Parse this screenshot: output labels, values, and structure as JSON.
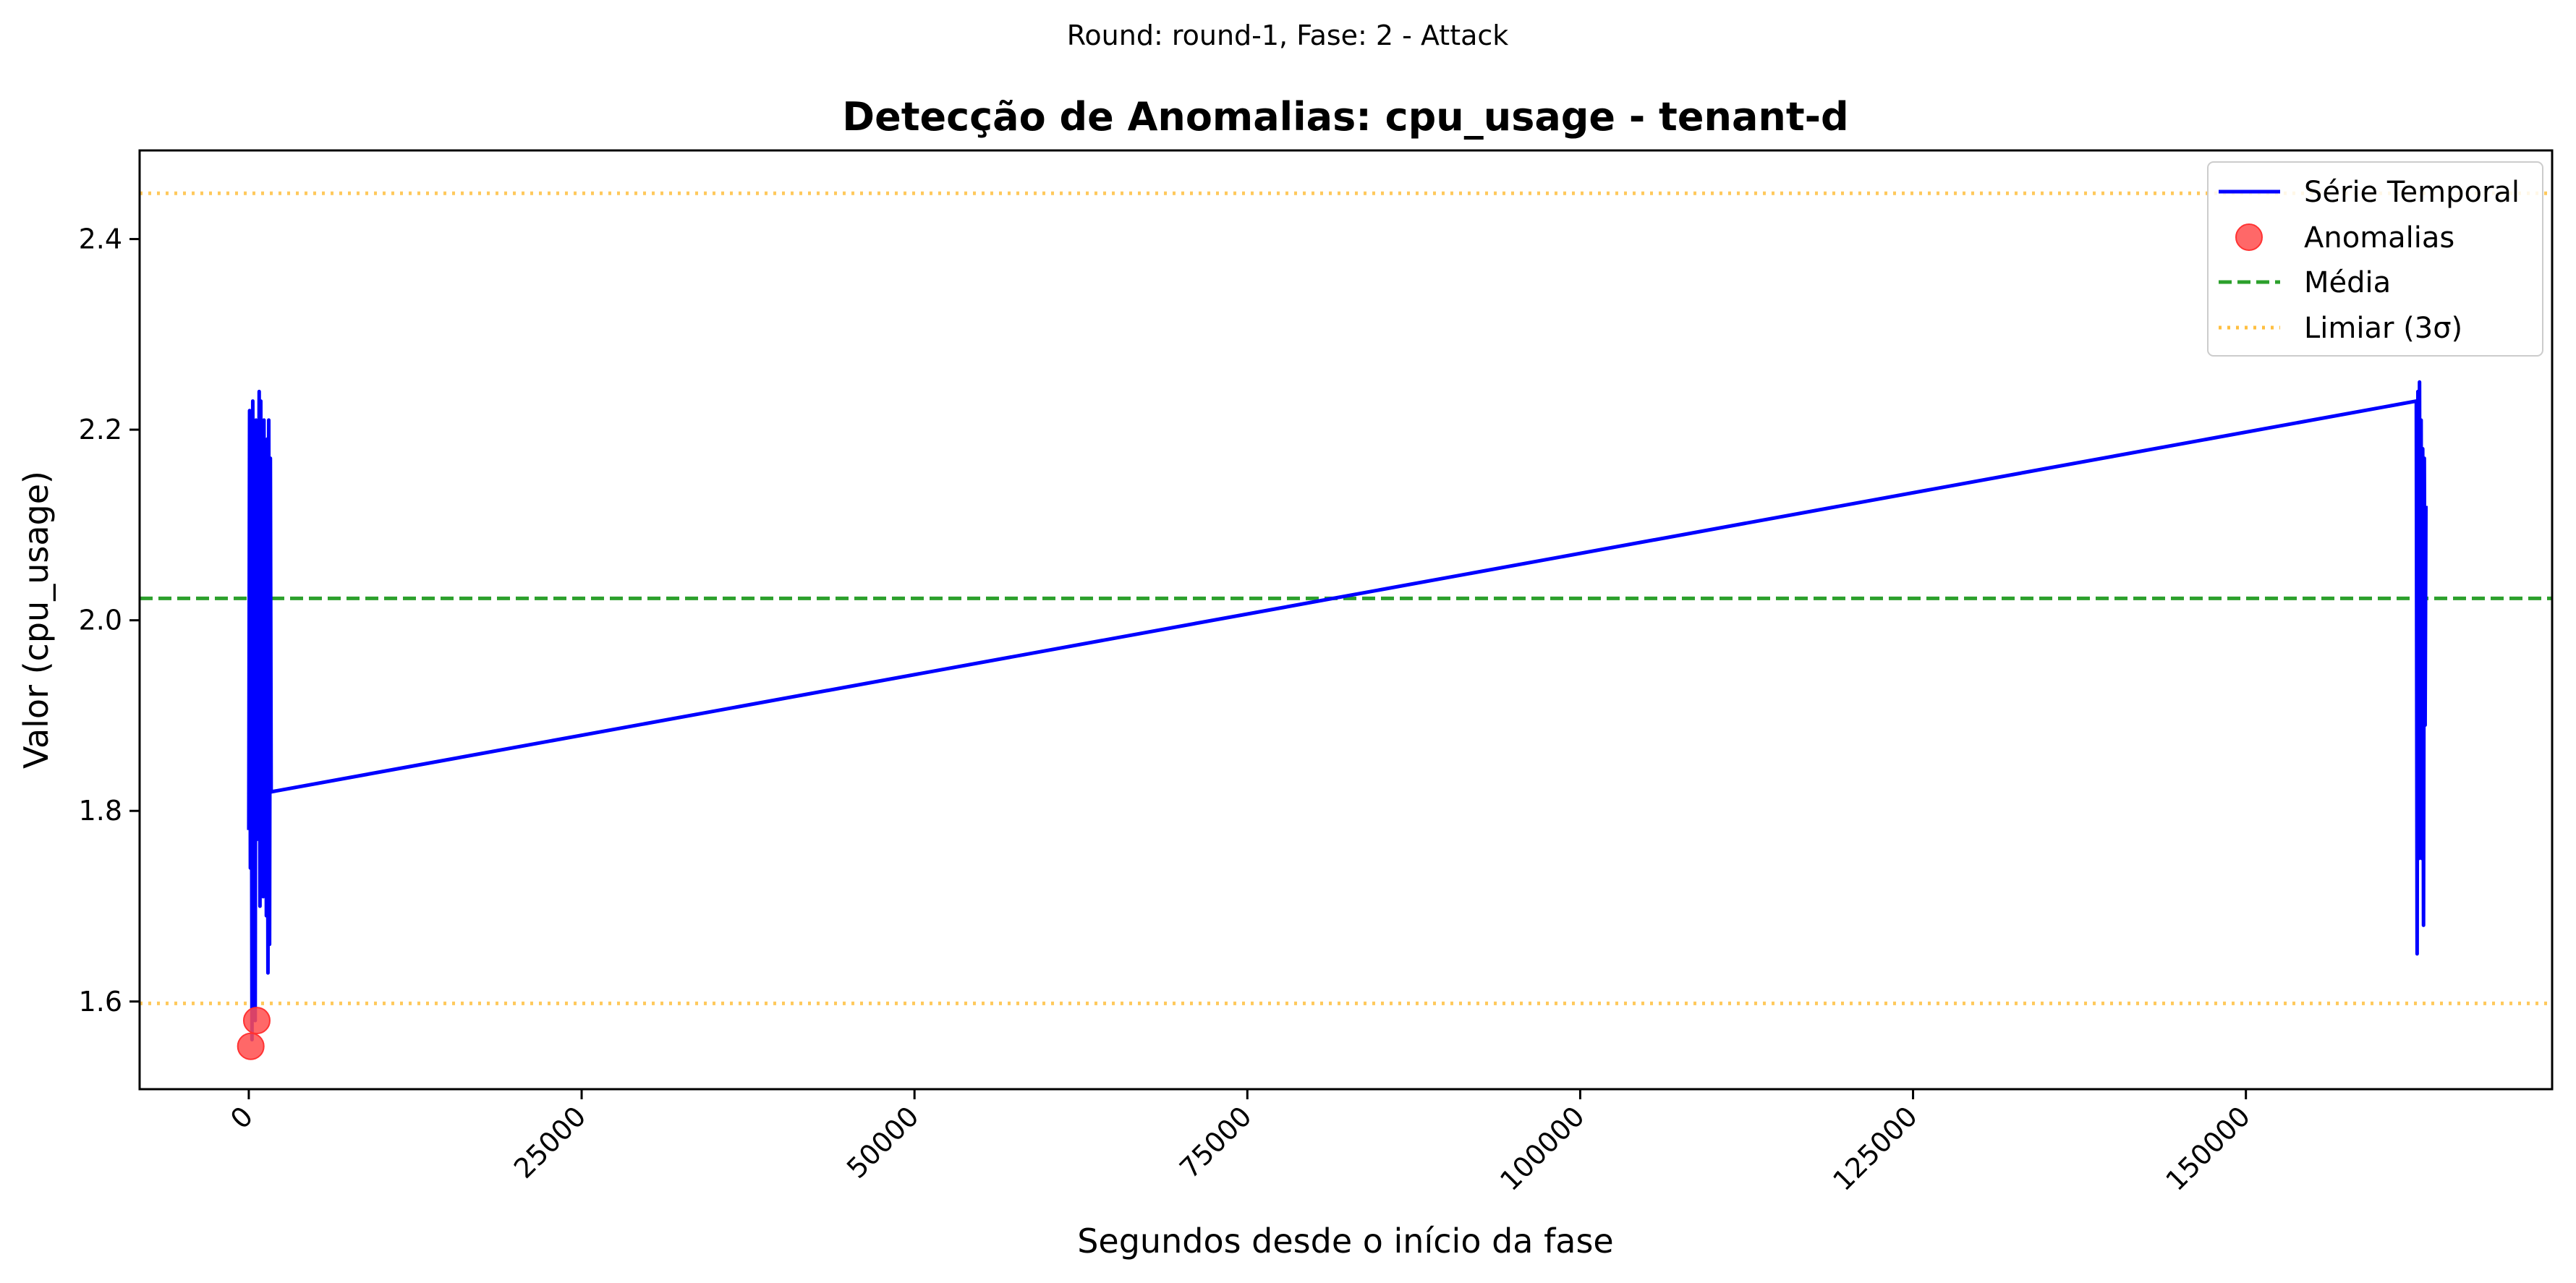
{
  "chart_data": {
    "type": "line",
    "suptitle": "Round: round-1, Fase: 2 - Attack",
    "title": "Detecção de Anomalias: cpu_usage - tenant-d",
    "xlabel": "Segundos desde o início da fase",
    "ylabel": "Valor (cpu_usage)",
    "xlim": [
      -8200,
      173000
    ],
    "ylim": [
      1.508,
      2.493
    ],
    "x_ticks": [
      0,
      25000,
      50000,
      75000,
      100000,
      125000,
      150000
    ],
    "x_tick_labels": [
      "0",
      "25000",
      "50000",
      "75000",
      "100000",
      "125000",
      "150000"
    ],
    "y_ticks": [
      1.6,
      1.8,
      2.0,
      2.2,
      2.4
    ],
    "y_tick_labels": [
      "1.6",
      "1.8",
      "2.0",
      "2.2",
      "2.4"
    ],
    "grid": false,
    "legend_position": "upper right",
    "legend": {
      "series": "Série Temporal",
      "anomalies": "Anomalias",
      "mean": "Média",
      "threshold": "Limiar (3σ)"
    },
    "series": [
      {
        "name": "Série Temporal",
        "color": "#0000ff",
        "points": [
          [
            0,
            1.78
          ],
          [
            60,
            2.22
          ],
          [
            120,
            1.74
          ],
          [
            180,
            2.18
          ],
          [
            240,
            1.56
          ],
          [
            300,
            2.23
          ],
          [
            360,
            1.76
          ],
          [
            420,
            2.2
          ],
          [
            480,
            1.58
          ],
          [
            540,
            2.21
          ],
          [
            600,
            1.77
          ],
          [
            660,
            2.06
          ],
          [
            720,
            1.9
          ],
          [
            780,
            2.24
          ],
          [
            840,
            1.7
          ],
          [
            900,
            2.23
          ],
          [
            960,
            1.76
          ],
          [
            1020,
            2.18
          ],
          [
            1080,
            1.71
          ],
          [
            1140,
            2.21
          ],
          [
            1200,
            1.79
          ],
          [
            1260,
            2.16
          ],
          [
            1320,
            1.69
          ],
          [
            1380,
            2.19
          ],
          [
            1440,
            1.63
          ],
          [
            1500,
            2.21
          ],
          [
            1560,
            1.66
          ],
          [
            1620,
            2.17
          ],
          [
            1680,
            1.82
          ],
          [
            162800,
            2.23
          ],
          [
            162860,
            1.65
          ],
          [
            162920,
            2.24
          ],
          [
            162980,
            1.75
          ],
          [
            163040,
            2.25
          ],
          [
            163100,
            1.76
          ],
          [
            163160,
            2.21
          ],
          [
            163220,
            1.75
          ],
          [
            163280,
            2.18
          ],
          [
            163340,
            1.68
          ],
          [
            163400,
            2.17
          ],
          [
            163460,
            1.89
          ],
          [
            163520,
            2.12
          ]
        ]
      }
    ],
    "anomalies": {
      "name": "Anomalias",
      "color": "#ff4d4d",
      "points": [
        [
          150,
          1.553
        ],
        [
          600,
          1.58
        ]
      ]
    },
    "mean": {
      "name": "Média",
      "value": 2.023,
      "color": "#2ca02c"
    },
    "threshold": {
      "name": "Limiar (3σ)",
      "upper": 2.448,
      "lower": 1.598,
      "color": "#ffbf40"
    }
  }
}
